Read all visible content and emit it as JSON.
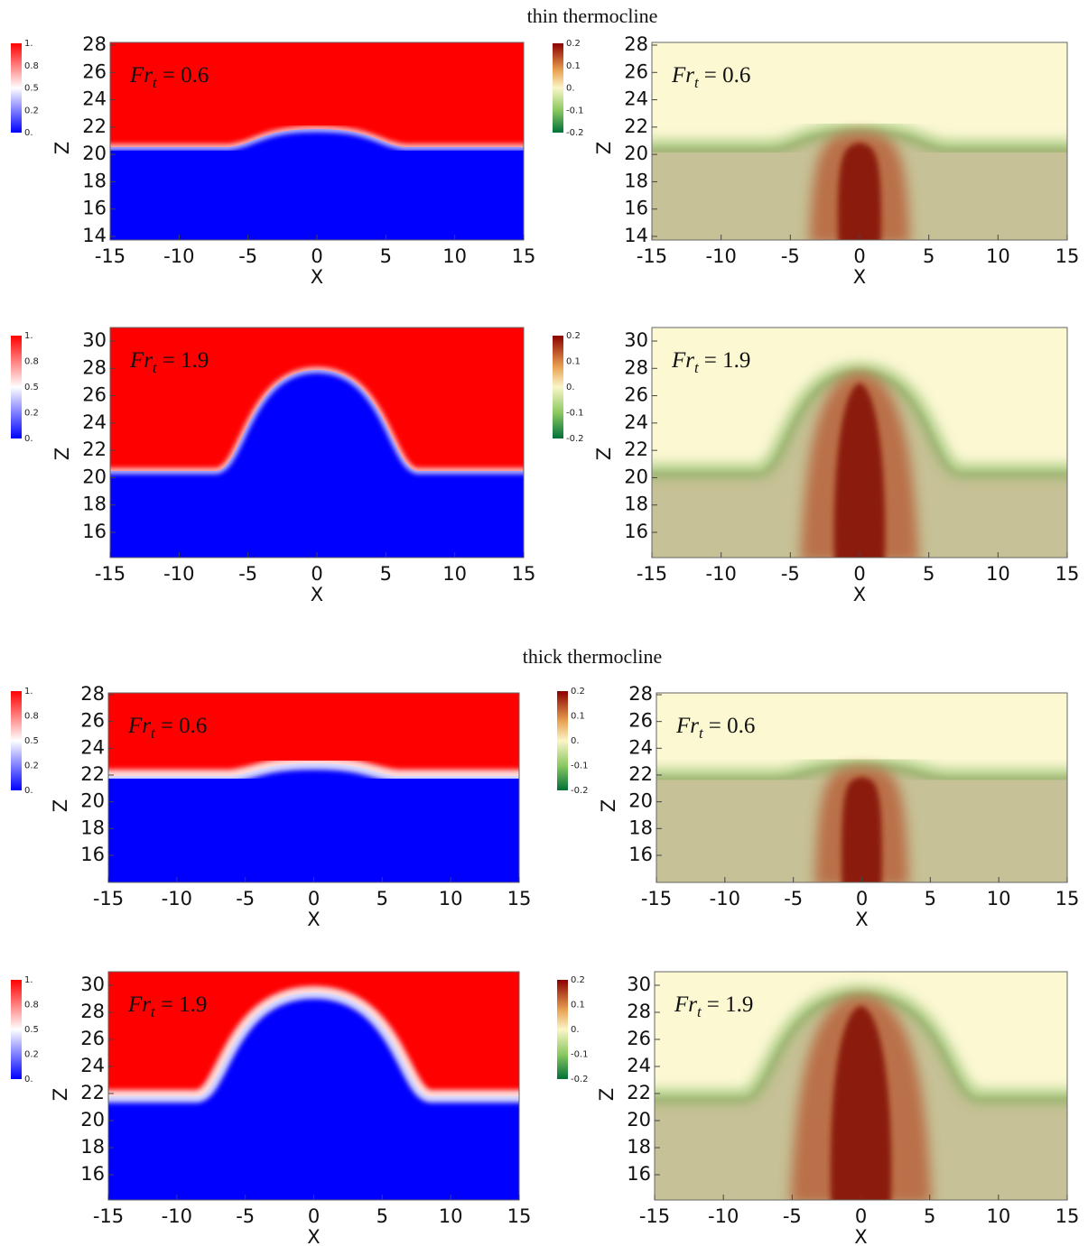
{
  "sections": [
    {
      "title": "thin thermocline",
      "rows": [
        {
          "annotation": {
            "symbol": "Fr",
            "subscript": "t",
            "value": "= 0.6"
          },
          "z_label": "Z",
          "x_label": "X",
          "z_ticks": [
            "14",
            "16",
            "18",
            "20",
            "22",
            "24",
            "26",
            "28"
          ],
          "x_ticks": [
            "-15",
            "-10",
            "-5",
            "0",
            "5",
            "10",
            "15"
          ],
          "left_colorbar": [
            "1.",
            "0.8",
            "0.5",
            "0.2",
            "0."
          ],
          "right_colorbar": [
            "0.2",
            "0.1",
            "0.",
            "-0.1",
            "-0.2"
          ]
        },
        {
          "annotation": {
            "symbol": "Fr",
            "subscript": "t",
            "value": "= 1.9"
          },
          "z_label": "Z",
          "x_label": "X",
          "z_ticks": [
            "16",
            "18",
            "20",
            "22",
            "24",
            "26",
            "28",
            "30"
          ],
          "x_ticks": [
            "-15",
            "-10",
            "-5",
            "0",
            "5",
            "10",
            "15"
          ],
          "left_colorbar": [
            "1.",
            "0.8",
            "0.5",
            "0.2",
            "0."
          ],
          "right_colorbar": [
            "0.2",
            "0.1",
            "0.",
            "-0.1",
            "-0.2"
          ]
        }
      ]
    },
    {
      "title": "thick thermocline",
      "rows": [
        {
          "annotation": {
            "symbol": "Fr",
            "subscript": "t",
            "value": "= 0.6"
          },
          "z_label": "Z",
          "x_label": "X",
          "z_ticks": [
            "16",
            "18",
            "20",
            "22",
            "24",
            "26",
            "28"
          ],
          "x_ticks": [
            "-15",
            "-10",
            "-5",
            "0",
            "5",
            "10",
            "15"
          ],
          "left_colorbar": [
            "1.",
            "0.8",
            "0.5",
            "0.2",
            "0."
          ],
          "right_colorbar": [
            "0.2",
            "0.1",
            "0.",
            "-0.1",
            "-0.2"
          ]
        },
        {
          "annotation": {
            "symbol": "Fr",
            "subscript": "t",
            "value": "= 1.9"
          },
          "z_label": "Z",
          "x_label": "X",
          "z_ticks": [
            "16",
            "18",
            "20",
            "22",
            "24",
            "26",
            "28",
            "30"
          ],
          "x_ticks": [
            "-15",
            "-10",
            "-5",
            "0",
            "5",
            "10",
            "15"
          ],
          "left_colorbar": [
            "1.",
            "0.8",
            "0.5",
            "0.2",
            "0."
          ],
          "right_colorbar": [
            "0.2",
            "0.1",
            "0.",
            "-0.1",
            "-0.2"
          ]
        }
      ]
    }
  ]
}
